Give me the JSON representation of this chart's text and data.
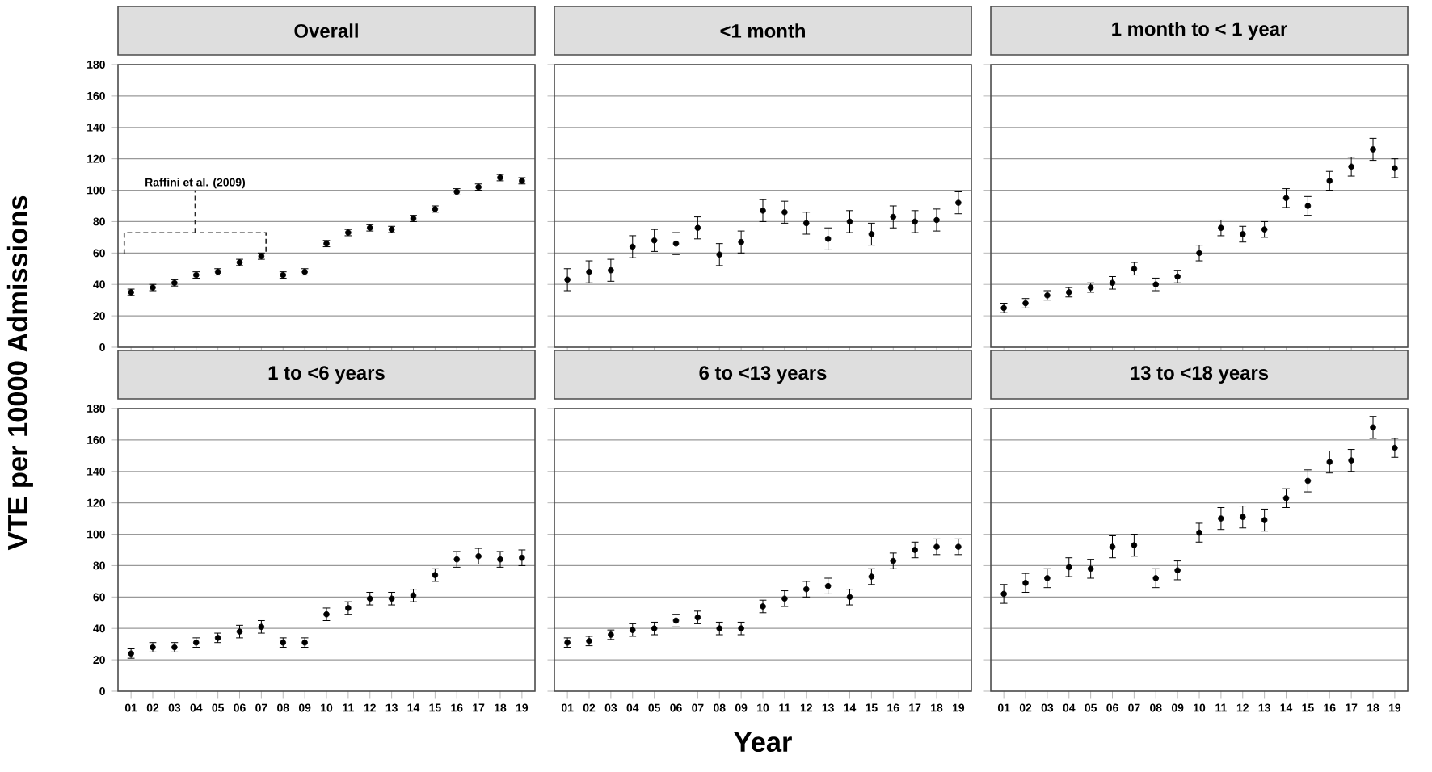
{
  "chart_data": [
    {
      "type": "scatter",
      "title": "Overall",
      "ylabel": "VTE per 10000 Admissions",
      "categories": [
        "01",
        "02",
        "03",
        "04",
        "05",
        "06",
        "07",
        "08",
        "09",
        "10",
        "11",
        "12",
        "13",
        "14",
        "15",
        "16",
        "17",
        "18",
        "19"
      ],
      "series": [
        {
          "color": "#000000",
          "values": [
            35,
            38,
            41,
            46,
            48,
            54,
            58,
            46,
            48,
            66,
            73,
            76,
            75,
            82,
            88,
            99,
            102,
            108,
            106
          ],
          "errors": [
            2,
            2,
            2,
            2,
            2,
            2,
            2,
            2,
            2,
            2,
            2,
            2,
            2,
            2,
            2,
            2,
            2,
            2,
            2
          ]
        }
      ],
      "ylim": [
        0,
        180
      ],
      "yticks": [
        0,
        20,
        40,
        60,
        80,
        100,
        120,
        140,
        160,
        180
      ],
      "grid": "y",
      "marker": "circle",
      "tick_labels": "y",
      "annotations": [
        "Raffini et al. (2009)"
      ]
    },
    {
      "type": "scatter",
      "title": "<1 month",
      "categories": [
        "01",
        "02",
        "03",
        "04",
        "05",
        "06",
        "07",
        "08",
        "09",
        "10",
        "11",
        "12",
        "13",
        "14",
        "15",
        "16",
        "17",
        "18",
        "19"
      ],
      "series": [
        {
          "color": "#000000",
          "values": [
            43,
            48,
            49,
            64,
            68,
            66,
            76,
            59,
            67,
            87,
            86,
            79,
            69,
            80,
            72,
            83,
            80,
            81,
            92
          ],
          "errors": [
            7,
            7,
            7,
            7,
            7,
            7,
            7,
            7,
            7,
            7,
            7,
            7,
            7,
            7,
            7,
            7,
            7,
            7,
            7
          ]
        }
      ],
      "ylim": [
        0,
        180
      ],
      "yticks": [
        0,
        20,
        40,
        60,
        80,
        100,
        120,
        140,
        160,
        180
      ],
      "grid": "y",
      "marker": "circle",
      "tick_labels": false
    },
    {
      "type": "scatter",
      "title": "1 month to < 1 year",
      "categories": [
        "01",
        "02",
        "03",
        "04",
        "05",
        "06",
        "07",
        "08",
        "09",
        "10",
        "11",
        "12",
        "13",
        "14",
        "15",
        "16",
        "17",
        "18",
        "19"
      ],
      "series": [
        {
          "color": "#000000",
          "values": [
            25,
            28,
            33,
            35,
            38,
            41,
            50,
            40,
            45,
            60,
            76,
            72,
            75,
            95,
            90,
            106,
            115,
            126,
            114
          ],
          "errors": [
            3,
            3,
            3,
            3,
            3,
            4,
            4,
            4,
            4,
            5,
            5,
            5,
            5,
            6,
            6,
            6,
            6,
            7,
            6
          ]
        }
      ],
      "ylim": [
        0,
        180
      ],
      "yticks": [
        0,
        20,
        40,
        60,
        80,
        100,
        120,
        140,
        160,
        180
      ],
      "grid": "y",
      "marker": "circle",
      "tick_labels": false
    },
    {
      "type": "scatter",
      "title": "1 to <6 years",
      "categories": [
        "01",
        "02",
        "03",
        "04",
        "05",
        "06",
        "07",
        "08",
        "09",
        "10",
        "11",
        "12",
        "13",
        "14",
        "15",
        "16",
        "17",
        "18",
        "19"
      ],
      "series": [
        {
          "color": "#000000",
          "values": [
            24,
            28,
            28,
            31,
            34,
            38,
            41,
            31,
            31,
            49,
            53,
            59,
            59,
            61,
            74,
            84,
            86,
            84,
            85
          ],
          "errors": [
            3,
            3,
            3,
            3,
            3,
            4,
            4,
            3,
            3,
            4,
            4,
            4,
            4,
            4,
            4,
            5,
            5,
            5,
            5
          ]
        }
      ],
      "ylim": [
        0,
        180
      ],
      "yticks": [
        0,
        20,
        40,
        60,
        80,
        100,
        120,
        140,
        160,
        180
      ],
      "grid": "y",
      "marker": "circle"
    },
    {
      "type": "scatter",
      "title": "6 to <13 years",
      "xlabel": "Year",
      "categories": [
        "01",
        "02",
        "03",
        "04",
        "05",
        "06",
        "07",
        "08",
        "09",
        "10",
        "11",
        "12",
        "13",
        "14",
        "15",
        "16",
        "17",
        "18",
        "19"
      ],
      "series": [
        {
          "color": "#000000",
          "values": [
            31,
            32,
            36,
            39,
            40,
            45,
            47,
            40,
            40,
            54,
            59,
            65,
            67,
            60,
            73,
            83,
            90,
            92,
            92
          ],
          "errors": [
            3,
            3,
            3,
            4,
            4,
            4,
            4,
            4,
            4,
            4,
            5,
            5,
            5,
            5,
            5,
            5,
            5,
            5,
            5
          ]
        }
      ],
      "ylim": [
        0,
        180
      ],
      "yticks": [
        0,
        20,
        40,
        60,
        80,
        100,
        120,
        140,
        160,
        180
      ],
      "grid": "y",
      "marker": "circle",
      "tick_labels": "x"
    },
    {
      "type": "scatter",
      "title": "13 to <18 years",
      "categories": [
        "01",
        "02",
        "03",
        "04",
        "05",
        "06",
        "07",
        "08",
        "09",
        "10",
        "11",
        "12",
        "13",
        "14",
        "15",
        "16",
        "17",
        "18",
        "19"
      ],
      "series": [
        {
          "color": "#000000",
          "values": [
            62,
            69,
            72,
            79,
            78,
            92,
            93,
            72,
            77,
            101,
            110,
            111,
            109,
            123,
            134,
            146,
            147,
            168,
            155
          ],
          "errors": [
            6,
            6,
            6,
            6,
            6,
            7,
            7,
            6,
            6,
            6,
            7,
            7,
            7,
            6,
            7,
            7,
            7,
            7,
            6
          ]
        }
      ],
      "ylim": [
        0,
        180
      ],
      "yticks": [
        0,
        20,
        40,
        60,
        80,
        100,
        120,
        140,
        160,
        180
      ],
      "grid": "y",
      "marker": "circle",
      "tick_labels": "x"
    }
  ]
}
